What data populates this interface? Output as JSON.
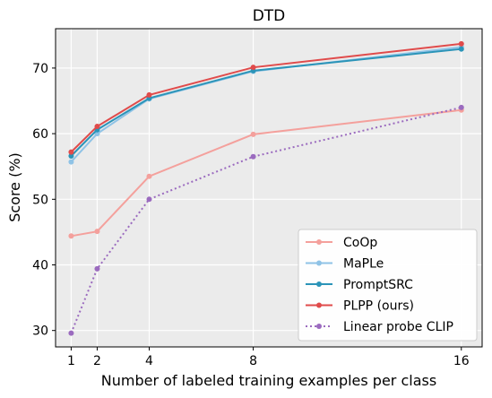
{
  "chart_data": {
    "type": "line",
    "title": "DTD",
    "xlabel": "Number of labeled training examples per class",
    "ylabel": "Score (%)",
    "x": [
      1,
      2,
      4,
      8,
      16
    ],
    "xticks": [
      "1",
      "2",
      "4",
      "8",
      "16"
    ],
    "xlim": [
      0.4,
      16.8
    ],
    "ylim": [
      27.5,
      76.0
    ],
    "yticks": [
      30,
      40,
      50,
      60,
      70
    ],
    "grid": true,
    "legend_position": "bottom-right",
    "series": [
      {
        "name": "CoOp",
        "values": [
          44.4,
          45.1,
          53.5,
          59.9,
          63.6
        ],
        "color": "#f4a09c",
        "dash": "solid"
      },
      {
        "name": "MaPLe",
        "values": [
          55.7,
          60.0,
          65.3,
          69.5,
          73.2
        ],
        "color": "#8fc3e6",
        "dash": "solid"
      },
      {
        "name": "PromptSRC",
        "values": [
          56.6,
          60.6,
          65.4,
          69.6,
          72.9
        ],
        "color": "#2b94b8",
        "dash": "solid"
      },
      {
        "name": "PLPP (ours)",
        "values": [
          57.2,
          61.1,
          65.9,
          70.1,
          73.7
        ],
        "color": "#e04b4b",
        "dash": "solid"
      },
      {
        "name": "Linear probe CLIP",
        "values": [
          29.6,
          39.4,
          50.0,
          56.5,
          64.0
        ],
        "color": "#9b6bbf",
        "dash": "dotted"
      }
    ]
  }
}
